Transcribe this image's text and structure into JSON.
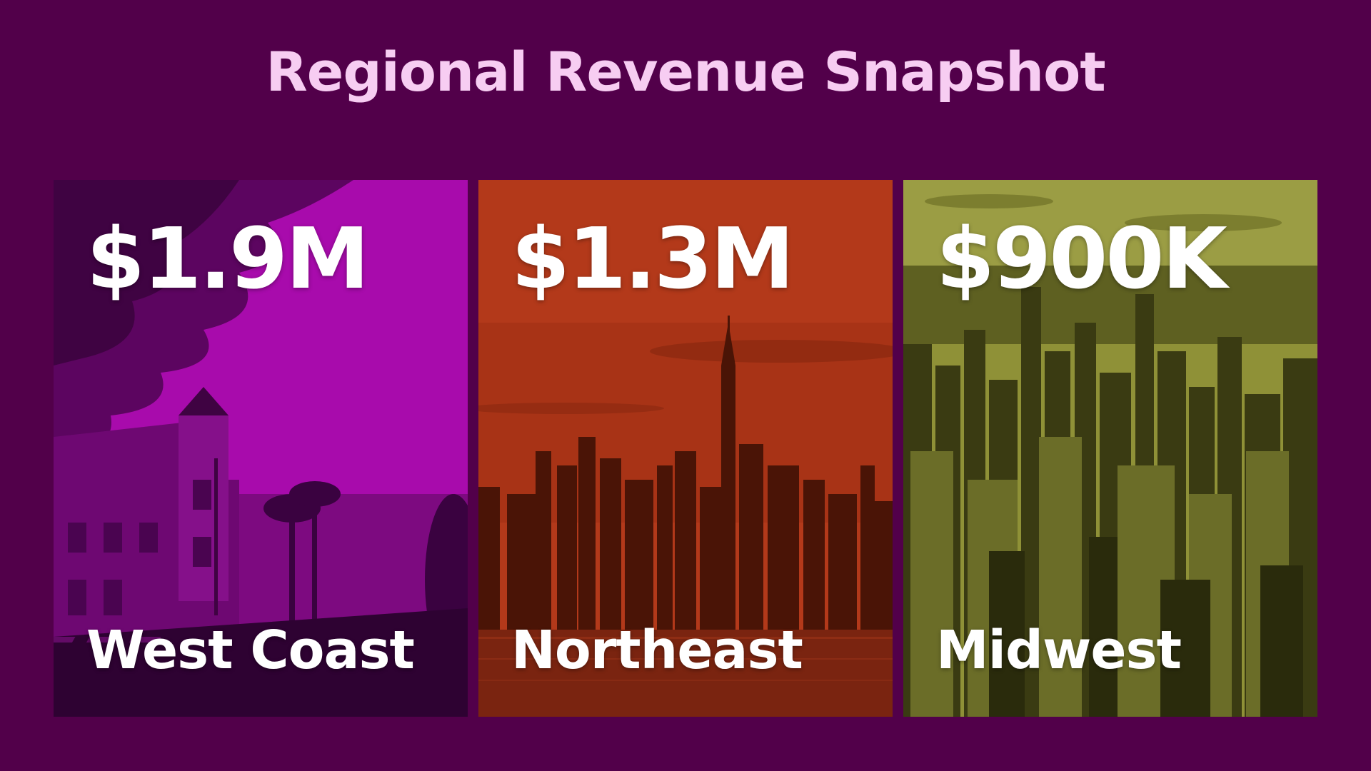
{
  "title": "Regional Revenue Snapshot",
  "cards": [
    {
      "value": "$1.9M",
      "region": "West Coast",
      "tint": "#a80bac",
      "shade": "#3a0238"
    },
    {
      "value": "$1.3M",
      "region": "Northeast",
      "tint": "#b3391a",
      "shade": "#3a1206"
    },
    {
      "value": "$900K",
      "region": "Midwest",
      "tint": "#8f9137",
      "shade": "#2b2c0d"
    }
  ]
}
